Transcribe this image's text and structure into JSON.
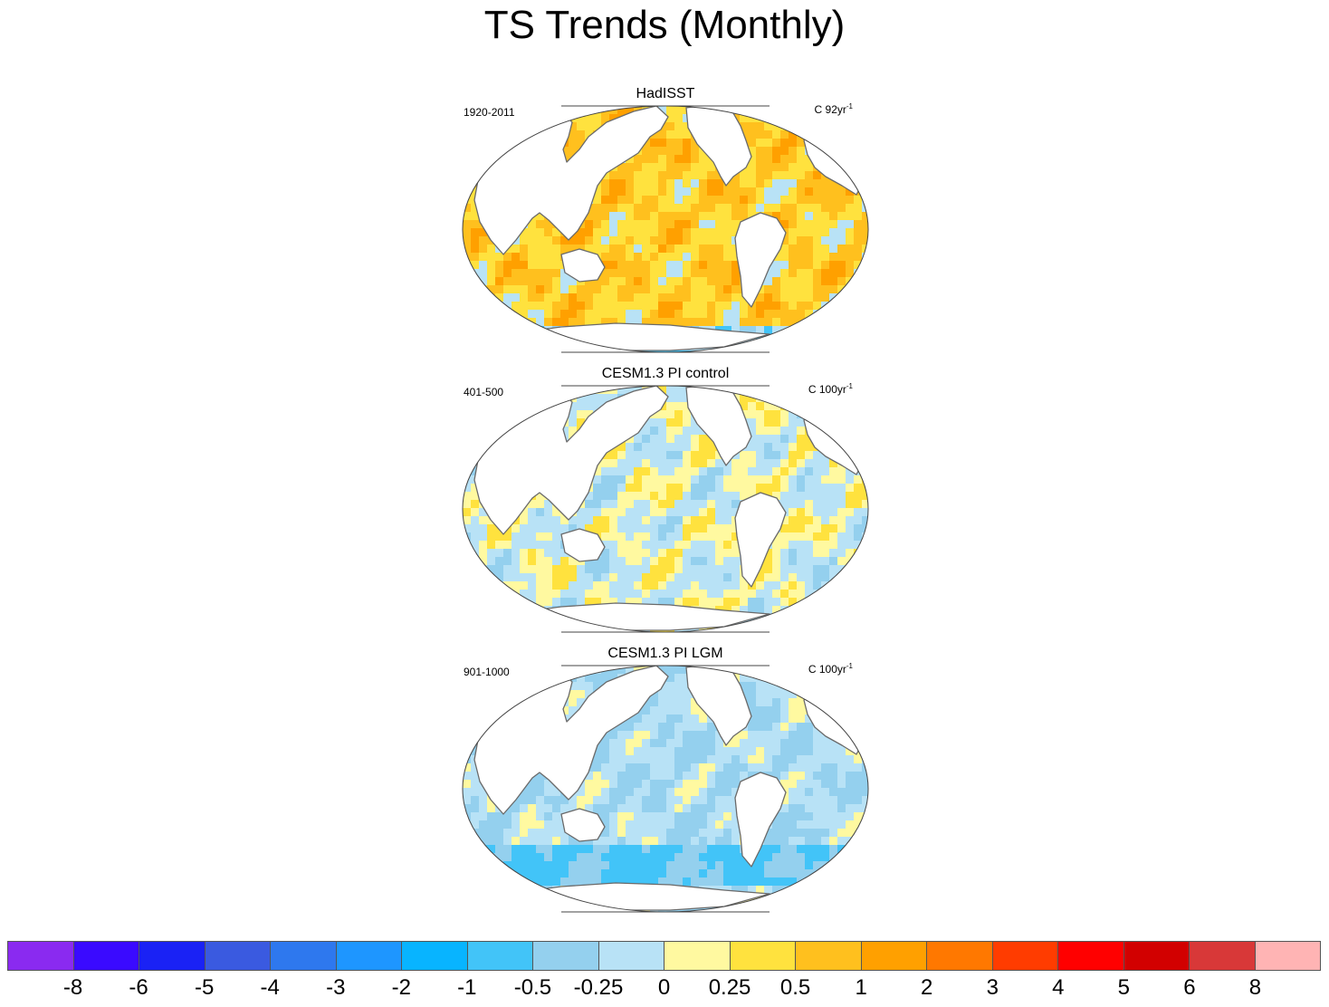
{
  "title": "TS Trends (Monthly)",
  "panels": [
    {
      "title": "HadISST",
      "period": "1920-2011",
      "units": "C 92yr",
      "units_exp": "-1",
      "regime": "warm"
    },
    {
      "title": "CESM1.3 PI control",
      "period": "401-500",
      "units": "C 100yr",
      "units_exp": "-1",
      "regime": "mixed"
    },
    {
      "title": "CESM1.3 PI LGM",
      "period": "901-1000",
      "units": "C 100yr",
      "units_exp": "-1",
      "regime": "cool"
    }
  ],
  "colorbar": {
    "colors": [
      "#8a2af0",
      "#3a0aff",
      "#1a22f5",
      "#3a5ae0",
      "#2e78ee",
      "#1e96ff",
      "#08b4ff",
      "#42c4f8",
      "#94d0ee",
      "#b8e2f6",
      "#fff9a0",
      "#ffe23e",
      "#ffc01e",
      "#ffa000",
      "#ff7800",
      "#ff3c00",
      "#ff0000",
      "#d20000",
      "#d83838",
      "#ffb4b4"
    ],
    "labels": [
      "-8",
      "-6",
      "-5",
      "-4",
      "-3",
      "-2",
      "-1",
      "-0.5",
      "-0.25",
      "0",
      "0.25",
      "0.5",
      "1",
      "2",
      "3",
      "4",
      "5",
      "6",
      "8"
    ]
  }
}
